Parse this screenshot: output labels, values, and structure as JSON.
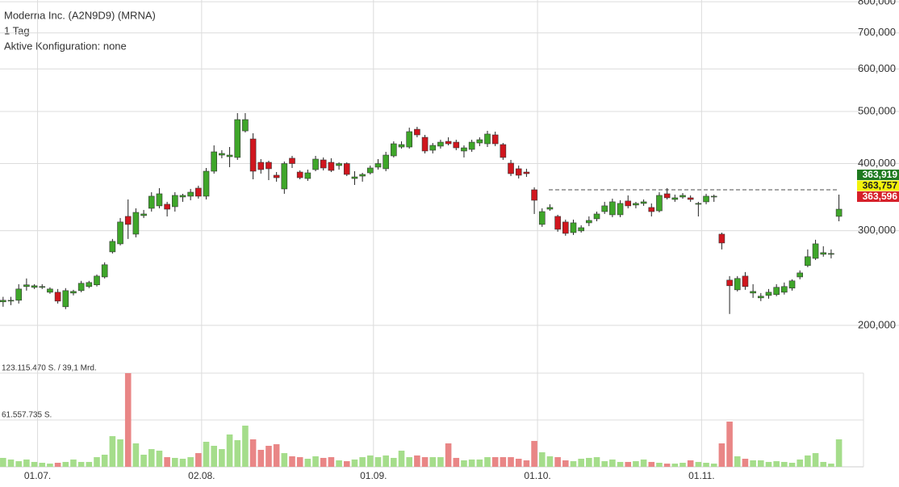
{
  "chart_data": {
    "type": "candlestick",
    "title": "Moderna Inc. (A2N9D9) (MRNA)",
    "subtitle": "1 Tag",
    "annotation": "Aktive Konfiguration: none",
    "log_scale": true,
    "grid": true,
    "up_color": "#3fa62a",
    "down_color": "#d0161e",
    "up_volume_color": "#a5dd8b",
    "down_volume_color": "#e98686",
    "categories": [
      null,
      null,
      null,
      null,
      "01.07.",
      null,
      null,
      null,
      null,
      null,
      null,
      null,
      null,
      null,
      null,
      null,
      null,
      null,
      null,
      null,
      null,
      null,
      null,
      null,
      null,
      "02.08.",
      null,
      null,
      null,
      null,
      null,
      null,
      null,
      null,
      null,
      null,
      null,
      null,
      null,
      null,
      null,
      null,
      null,
      null,
      null,
      null,
      null,
      "01.09.",
      null,
      null,
      null,
      null,
      null,
      null,
      null,
      null,
      null,
      null,
      null,
      null,
      null,
      null,
      null,
      null,
      null,
      null,
      null,
      null,
      "01.10.",
      null,
      null,
      null,
      null,
      null,
      null,
      null,
      null,
      null,
      null,
      null,
      null,
      null,
      null,
      null,
      null,
      null,
      null,
      null,
      null,
      "01.11.",
      null,
      null,
      null,
      null,
      null,
      null,
      null,
      null,
      null,
      null,
      null,
      null,
      null,
      null,
      null,
      null,
      null,
      null
    ],
    "open": [
      221200,
      221900,
      222700,
      236200,
      235400,
      235400,
      230500,
      230500,
      216600,
      229700,
      232100,
      236200,
      237900,
      246100,
      274000,
      283600,
      319000,
      295600,
      320100,
      330200,
      333700,
      336000,
      332500,
      346600,
      347800,
      360000,
      347800,
      387100,
      414800,
      412000,
      410600,
      460100,
      444500,
      402100,
      402100,
      380500,
      358800,
      409200,
      385700,
      375200,
      389800,
      406300,
      402100,
      396600,
      400000,
      375200,
      379100,
      384400,
      393900,
      391200,
      413400,
      429400,
      429400,
      463300,
      447600,
      423500,
      431000,
      439900,
      438400,
      422100,
      425000,
      436900,
      435400,
      452300,
      433900,
      400700,
      391200,
      385700,
      357500,
      308200,
      329000,
      319000,
      311400,
      297600,
      299800,
      310300,
      315700,
      325600,
      321200,
      321200,
      340700,
      334900,
      337200,
      331400,
      326700,
      351400,
      343000,
      346600,
      345400,
      336000,
      339500,
      346600,
      295600,
      242800,
      232900,
      247000,
      229700,
      225000,
      227400,
      228200,
      230500,
      234600,
      246100,
      258400,
      266500,
      271200,
      271200,
      319000
    ],
    "high": [
      226000,
      226000,
      238600,
      244500,
      238600,
      238600,
      235400,
      233700,
      234600,
      232900,
      242000,
      242000,
      248700,
      262000,
      289600,
      316800,
      343000,
      330200,
      327900,
      353800,
      360000,
      339500,
      353800,
      351400,
      358800,
      363800,
      392500,
      432400,
      423500,
      429400,
      496500,
      496500,
      455400,
      407700,
      404900,
      385700,
      403500,
      413400,
      388400,
      389800,
      413400,
      410600,
      409200,
      402100,
      402100,
      387100,
      384400,
      396600,
      407700,
      420600,
      439900,
      439900,
      466500,
      468200,
      452300,
      436900,
      443000,
      447600,
      443000,
      432400,
      443000,
      447600,
      460100,
      458600,
      436900,
      406300,
      396600,
      391200,
      361300,
      330200,
      336000,
      321200,
      314600,
      314600,
      307100,
      319000,
      325600,
      339500,
      344200,
      341900,
      349000,
      339500,
      343000,
      337200,
      353800,
      360000,
      350200,
      352600,
      349000,
      339500,
      351400,
      350200,
      297600,
      247000,
      247000,
      251300,
      238600,
      229700,
      233700,
      238600,
      240300,
      243600,
      253100,
      276900,
      288600,
      280700,
      276900,
      350200
    ],
    "low": [
      216600,
      218100,
      219600,
      232100,
      233700,
      233700,
      229000,
      219600,
      214400,
      227400,
      230500,
      234600,
      236200,
      244500,
      272100,
      281700,
      289600,
      291600,
      316800,
      325600,
      330200,
      318900,
      325600,
      339500,
      341800,
      344200,
      343000,
      383100,
      409200,
      393900,
      406300,
      457000,
      373900,
      383100,
      372600,
      370100,
      351400,
      392500,
      373900,
      371400,
      387100,
      388400,
      385700,
      389800,
      379100,
      365000,
      370100,
      381800,
      389800,
      387100,
      410600,
      426400,
      426400,
      447600,
      417700,
      417700,
      426400,
      432400,
      423500,
      410600,
      420600,
      431000,
      429400,
      431000,
      406300,
      379100,
      375200,
      377800,
      322300,
      305000,
      326700,
      298700,
      293600,
      294600,
      297600,
      306000,
      312400,
      322300,
      317900,
      317900,
      330200,
      330200,
      333700,
      318900,
      324500,
      343000,
      339500,
      344200,
      339500,
      318900,
      336000,
      339500,
      276900,
      210000,
      231300,
      232900,
      225000,
      221900,
      224200,
      226600,
      228200,
      232100,
      243600,
      256600,
      264700,
      268400,
      266500,
      312400
    ],
    "close": [
      222700,
      222700,
      233700,
      237900,
      237000,
      236200,
      233700,
      221900,
      232100,
      231300,
      239500,
      240300,
      247000,
      259300,
      286600,
      311400,
      308200,
      324500,
      322300,
      347800,
      351400,
      329000,
      349000,
      349000,
      353800,
      347800,
      387100,
      420600,
      417700,
      414800,
      482900,
      482900,
      387100,
      389800,
      391200,
      376500,
      400000,
      400000,
      376500,
      384400,
      407700,
      392500,
      388400,
      400000,
      381800,
      377800,
      381800,
      392500,
      400000,
      414800,
      435400,
      433900,
      458600,
      452300,
      422100,
      432400,
      438400,
      435400,
      427900,
      427900,
      438400,
      443000,
      453900,
      435400,
      410600,
      383100,
      380500,
      383100,
      341800,
      325600,
      331400,
      301800,
      296600,
      310300,
      303900,
      313500,
      322300,
      333700,
      339500,
      337200,
      333700,
      337200,
      339500,
      325600,
      349000,
      345400,
      345400,
      349000,
      343000,
      337200,
      347800,
      347800,
      284600,
      237000,
      244500,
      236200,
      231300,
      226600,
      230500,
      235400,
      236200,
      242000,
      250400,
      268400,
      283600,
      273100,
      272100,
      329000
    ],
    "volume": [
      11700000,
      9600000,
      7400000,
      9600000,
      6400000,
      5300000,
      4200000,
      5300000,
      6400000,
      9600000,
      6400000,
      6400000,
      12700000,
      15900000,
      40300000,
      36100000,
      123115470,
      30800000,
      15900000,
      23300000,
      21200000,
      12700000,
      11700000,
      10600000,
      12700000,
      18000000,
      32900000,
      27600000,
      23300000,
      42500000,
      35000000,
      54100000,
      36100000,
      22300000,
      27600000,
      29700000,
      18000000,
      13800000,
      12700000,
      10600000,
      13800000,
      11700000,
      12700000,
      8500000,
      7400000,
      9600000,
      12700000,
      14900000,
      12700000,
      14900000,
      11700000,
      21200000,
      12700000,
      14900000,
      12700000,
      12700000,
      12700000,
      30800000,
      11700000,
      8500000,
      9600000,
      9600000,
      12700000,
      12700000,
      12700000,
      12700000,
      10600000,
      8500000,
      34000000,
      19100000,
      13800000,
      12700000,
      8500000,
      7400000,
      10600000,
      11700000,
      12700000,
      7400000,
      9600000,
      6400000,
      6400000,
      7400000,
      9600000,
      6400000,
      5300000,
      4200000,
      4200000,
      5300000,
      8500000,
      6400000,
      5300000,
      4200000,
      30800000,
      59400000,
      13800000,
      10600000,
      8500000,
      8500000,
      6400000,
      7400000,
      6400000,
      5300000,
      9600000,
      14900000,
      18000000,
      6400000,
      4200000,
      36100000
    ],
    "ylim": [
      163000,
      806000
    ],
    "yticks": [
      {
        "value": 200000,
        "label": "200,000"
      },
      {
        "value": 300000,
        "label": "300,000"
      },
      {
        "value": 400000,
        "label": "400,000"
      },
      {
        "value": 500000,
        "label": "500,000"
      },
      {
        "value": 600000,
        "label": "600,000"
      },
      {
        "value": 700000,
        "label": "700,000"
      },
      {
        "value": 800000,
        "label": "800,000"
      }
    ],
    "volume_lim": [
      0,
      123115470
    ],
    "volume_ticks": [
      {
        "value": 123115470,
        "label": "123.115.470 S. / 39,1 Mrd."
      },
      {
        "value": 61557735,
        "label": "61.557.735 S."
      }
    ],
    "reference_line": 357500,
    "price_tags": [
      {
        "value": 363919,
        "label": "363,919",
        "color": "#1f7a1f"
      },
      {
        "value": 363757,
        "label": "363,757",
        "color": "#f2f20a"
      },
      {
        "value": 363596,
        "label": "363,596",
        "color": "#d6202a"
      }
    ]
  }
}
